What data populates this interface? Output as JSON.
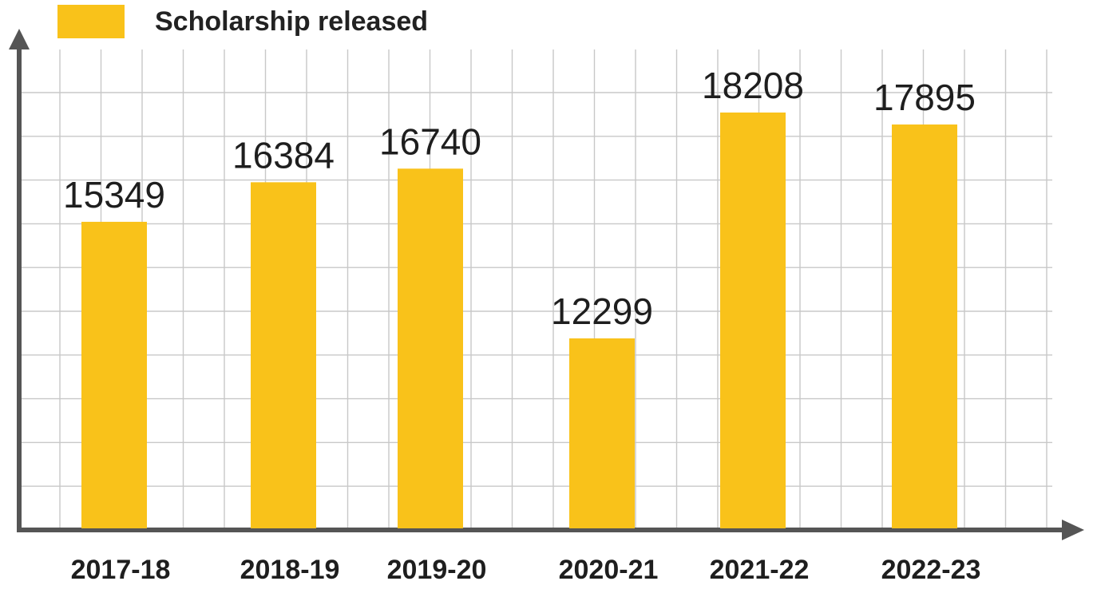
{
  "chart_data": {
    "type": "bar",
    "categories": [
      "2017-18",
      "2018-19",
      "2019-20",
      "2020-21",
      "2021-22",
      "2022-23"
    ],
    "series": [
      {
        "name": "Scholarship released",
        "values": [
          15349,
          16384,
          16740,
          12299,
          18208,
          17895
        ]
      }
    ],
    "legend": {
      "label": "Scholarship released",
      "position": "top-left"
    },
    "grid": true,
    "colors": {
      "bar": "#F9C21A",
      "grid": "#c8c8c8",
      "axis": "#555555",
      "text": "#1e1e1e"
    }
  }
}
